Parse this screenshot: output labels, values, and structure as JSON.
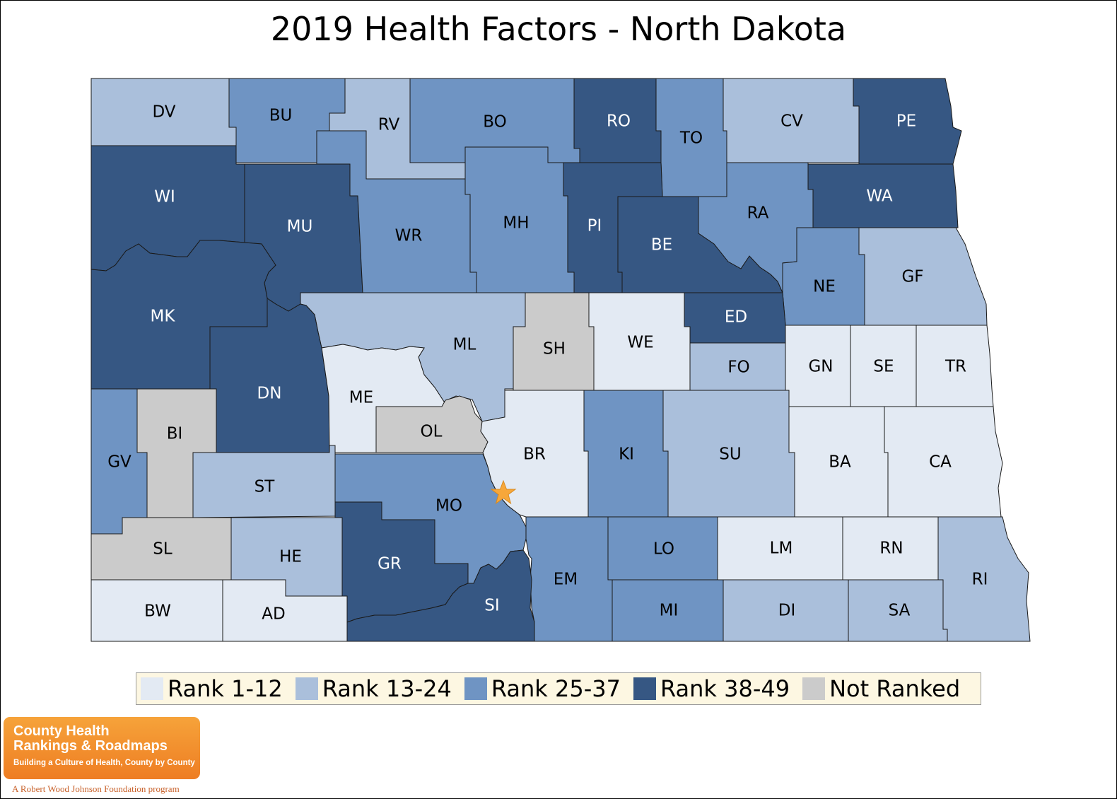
{
  "title": "2019 Health Factors - North Dakota",
  "colors": {
    "rank_1_12": "#e3eaf3",
    "rank_13_24": "#aabfdb",
    "rank_25_37": "#6f94c3",
    "rank_38_49": "#365783",
    "not_ranked": "#cbcbcb",
    "capital_star": "#f7a73a"
  },
  "legend": [
    {
      "key": "rank_1_12",
      "label": "Rank 1-12"
    },
    {
      "key": "rank_13_24",
      "label": "Rank 13-24"
    },
    {
      "key": "rank_25_37",
      "label": "Rank 25-37"
    },
    {
      "key": "rank_38_49",
      "label": "Rank 38-49"
    },
    {
      "key": "not_ranked",
      "label": "Not Ranked"
    }
  ],
  "counties": [
    {
      "abbr": "DV",
      "category": "rank_13_24"
    },
    {
      "abbr": "BU",
      "category": "rank_25_37"
    },
    {
      "abbr": "RV",
      "category": "rank_13_24"
    },
    {
      "abbr": "BO",
      "category": "rank_25_37"
    },
    {
      "abbr": "RO",
      "category": "rank_38_49"
    },
    {
      "abbr": "TO",
      "category": "rank_25_37"
    },
    {
      "abbr": "CV",
      "category": "rank_13_24"
    },
    {
      "abbr": "PE",
      "category": "rank_38_49"
    },
    {
      "abbr": "WI",
      "category": "rank_38_49"
    },
    {
      "abbr": "MU",
      "category": "rank_38_49"
    },
    {
      "abbr": "WR",
      "category": "rank_25_37"
    },
    {
      "abbr": "MH",
      "category": "rank_25_37"
    },
    {
      "abbr": "PI",
      "category": "rank_38_49"
    },
    {
      "abbr": "BE",
      "category": "rank_38_49"
    },
    {
      "abbr": "RA",
      "category": "rank_25_37"
    },
    {
      "abbr": "WA",
      "category": "rank_38_49"
    },
    {
      "abbr": "NE",
      "category": "rank_25_37"
    },
    {
      "abbr": "GF",
      "category": "rank_13_24"
    },
    {
      "abbr": "MK",
      "category": "rank_38_49"
    },
    {
      "abbr": "ML",
      "category": "rank_13_24"
    },
    {
      "abbr": "SH",
      "category": "not_ranked"
    },
    {
      "abbr": "WE",
      "category": "rank_1_12"
    },
    {
      "abbr": "ED",
      "category": "rank_38_49"
    },
    {
      "abbr": "FO",
      "category": "rank_13_24"
    },
    {
      "abbr": "GN",
      "category": "rank_1_12"
    },
    {
      "abbr": "SE",
      "category": "rank_1_12"
    },
    {
      "abbr": "TR",
      "category": "rank_1_12"
    },
    {
      "abbr": "DN",
      "category": "rank_38_49"
    },
    {
      "abbr": "ME",
      "category": "rank_1_12"
    },
    {
      "abbr": "OL",
      "category": "not_ranked"
    },
    {
      "abbr": "BI",
      "category": "not_ranked"
    },
    {
      "abbr": "GV",
      "category": "rank_25_37"
    },
    {
      "abbr": "ST",
      "category": "rank_13_24"
    },
    {
      "abbr": "MO",
      "category": "rank_25_37"
    },
    {
      "abbr": "BR",
      "category": "rank_1_12"
    },
    {
      "abbr": "KI",
      "category": "rank_25_37"
    },
    {
      "abbr": "SU",
      "category": "rank_13_24"
    },
    {
      "abbr": "BA",
      "category": "rank_1_12"
    },
    {
      "abbr": "CA",
      "category": "rank_1_12"
    },
    {
      "abbr": "SL",
      "category": "not_ranked"
    },
    {
      "abbr": "HE",
      "category": "rank_13_24"
    },
    {
      "abbr": "GR",
      "category": "rank_38_49"
    },
    {
      "abbr": "EM",
      "category": "rank_25_37"
    },
    {
      "abbr": "LO",
      "category": "rank_25_37"
    },
    {
      "abbr": "LM",
      "category": "rank_1_12"
    },
    {
      "abbr": "RN",
      "category": "rank_1_12"
    },
    {
      "abbr": "RI",
      "category": "rank_13_24"
    },
    {
      "abbr": "BW",
      "category": "rank_1_12"
    },
    {
      "abbr": "AD",
      "category": "rank_1_12"
    },
    {
      "abbr": "SI",
      "category": "rank_38_49"
    },
    {
      "abbr": "MI",
      "category": "rank_25_37"
    },
    {
      "abbr": "DI",
      "category": "rank_13_24"
    },
    {
      "abbr": "SA",
      "category": "rank_13_24"
    }
  ],
  "capital_marker": "star-icon",
  "logo": {
    "name": "County Health\nRankings & Roadmaps",
    "tagline": "Building a Culture of Health, County by County",
    "sub": "A Robert Wood Johnson Foundation program"
  }
}
